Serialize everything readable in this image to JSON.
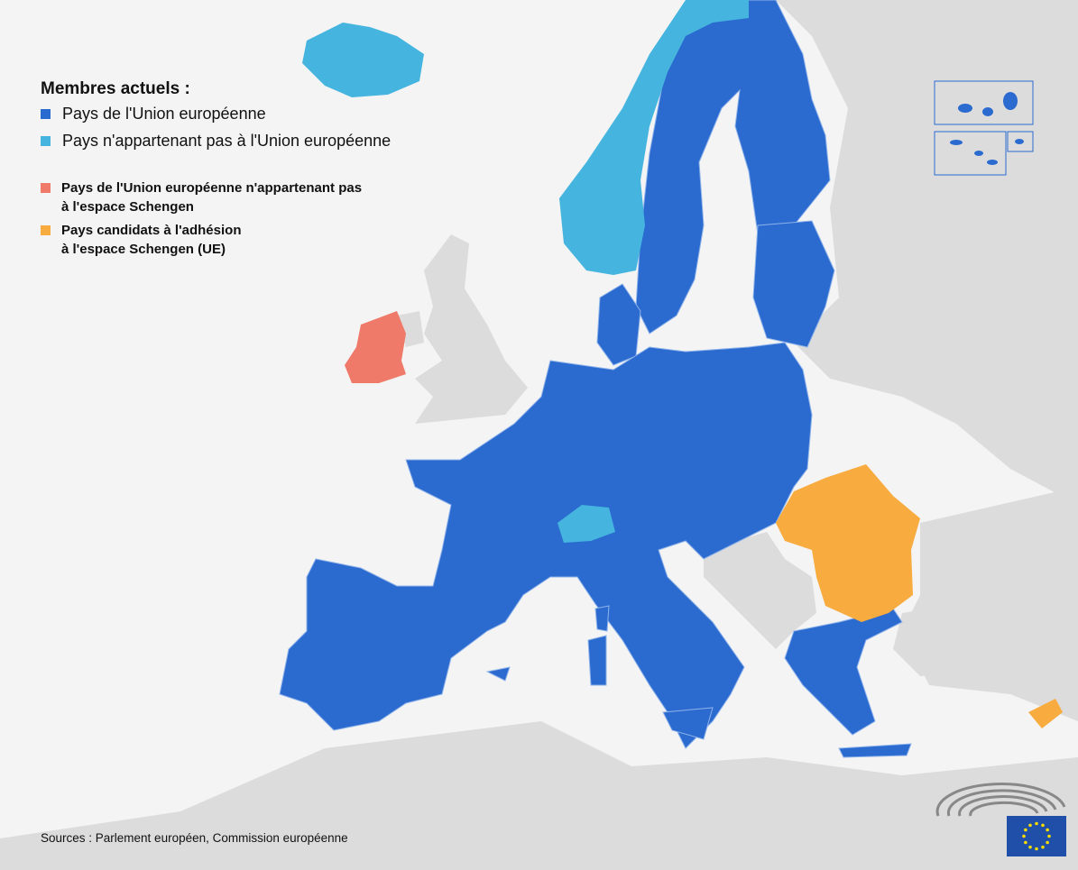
{
  "legend": {
    "title": "Membres actuels :",
    "items": [
      {
        "label": "Pays de l'Union européenne",
        "color": "#2b6bd0"
      },
      {
        "label": "Pays n'appartenant pas à l'Union européenne",
        "color": "#45b5e0"
      },
      {
        "label_line1": "Pays de l'Union européenne n'appartenant pas",
        "label_line2": "à l'espace Schengen",
        "color": "#ef7a6a"
      },
      {
        "label_line1": "Pays candidats à l'adhésion",
        "label_line2": "à l'espace Schengen (UE)",
        "color": "#f8ab3e"
      }
    ]
  },
  "colors": {
    "land_other": "#dcdcdc",
    "sea": "#f4f4f4",
    "border": "#8fb3ea"
  },
  "sources": "Sources : Parlement européen, Commission européenne",
  "logos": [
    "european-parliament-hemicycle",
    "eu-flag"
  ]
}
